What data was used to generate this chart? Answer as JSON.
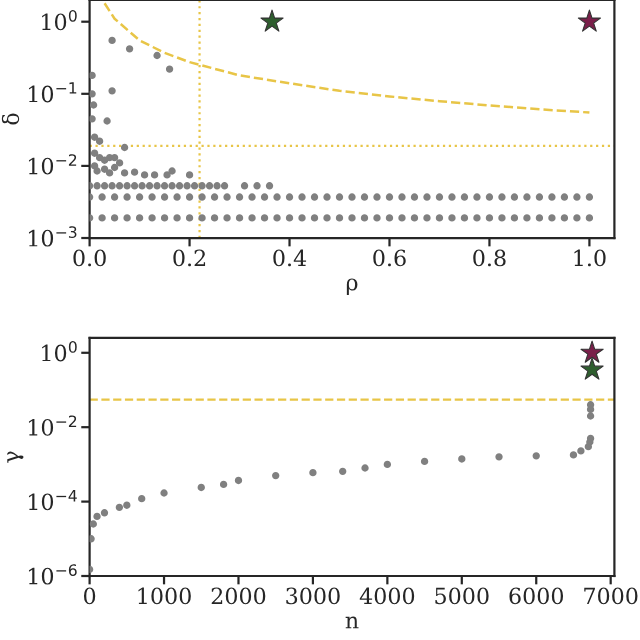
{
  "chart_data": [
    {
      "type": "scatter",
      "xlabel": "ρ",
      "ylabel": "δ",
      "log": "y",
      "xlim": [
        0,
        1.05
      ],
      "ylim": [
        0.001,
        2
      ],
      "xticks": [
        {
          "value": 0,
          "label": "0.0"
        },
        0.2,
        0.4,
        0.6,
        0.8,
        {
          "value": 1,
          "label": "1.0"
        }
      ],
      "yticks": [
        {
          "value": 0.001,
          "label": "10$^{−3}$"
        },
        {
          "value": 0.01,
          "label": "10$^{−2}$"
        },
        {
          "value": 0.1,
          "label": "10$^{−1}$"
        },
        {
          "value": 1,
          "label": "10$^{0}$"
        }
      ],
      "ref_lines": [
        {
          "axis": "x",
          "value": 0.22,
          "color": "#e8c547",
          "line_style": "dotted"
        },
        {
          "axis": "y",
          "value": 0.019,
          "color": "#e8c547",
          "line_style": "dotted"
        }
      ],
      "series": [
        {
          "marker": "circle",
          "color": "#808080",
          "x": [
            0,
            0.025,
            0.05,
            0.075,
            0.1,
            0.125,
            0.15,
            0.175,
            0.2,
            0.225,
            0.25,
            0.275,
            0.3,
            0.325,
            0.35,
            0.375,
            0.4,
            0.425,
            0.45,
            0.475,
            0.5,
            0.525,
            0.55,
            0.575,
            0.6,
            0.625,
            0.65,
            0.675,
            0.7,
            0.725,
            0.75,
            0.775,
            0.8,
            0.825,
            0.85,
            0.875,
            0.9,
            0.925,
            0.95,
            0.975,
            1.0,
            0,
            0.025,
            0.05,
            0.075,
            0.1,
            0.125,
            0.15,
            0.175,
            0.2,
            0.225,
            0.25,
            0.275,
            0.3,
            0.325,
            0.35,
            0.375,
            0.4,
            0.425,
            0.45,
            0.475,
            0.5,
            0.525,
            0.55,
            0.575,
            0.6,
            0.625,
            0.65,
            0.675,
            0.7,
            0.725,
            0.75,
            0.775,
            0.8,
            0.825,
            0.85,
            0.875,
            0.9,
            0.925,
            0.95,
            0.975,
            1.0,
            0,
            0.015,
            0.03,
            0.045,
            0.06,
            0.075,
            0.09,
            0.105,
            0.12,
            0.135,
            0.15,
            0.165,
            0.18,
            0.195,
            0.21,
            0.225,
            0.24,
            0.255,
            0.27,
            0.31,
            0.335,
            0.36,
            0.045,
            0.08,
            0.135,
            0.16,
            0.045,
            0.035,
            0.005,
            0.005,
            0.008,
            0.005,
            0.01,
            0.02,
            0.07,
            0.01,
            0.02,
            0.03,
            0.04,
            0.05,
            0.06,
            0.01,
            0.03,
            0.05,
            0.07,
            0.09,
            0.11,
            0.13,
            0.155,
            0.165,
            0.2,
            0.015,
            0.04
          ],
          "values": [
            0.0019,
            0.0019,
            0.0019,
            0.0019,
            0.0019,
            0.0019,
            0.0019,
            0.0019,
            0.0019,
            0.0019,
            0.0019,
            0.0019,
            0.0019,
            0.0019,
            0.0019,
            0.0019,
            0.0019,
            0.0019,
            0.0019,
            0.0019,
            0.0019,
            0.0019,
            0.0019,
            0.0019,
            0.0019,
            0.0019,
            0.0019,
            0.0019,
            0.0019,
            0.0019,
            0.0019,
            0.0019,
            0.0019,
            0.0019,
            0.0019,
            0.0019,
            0.0019,
            0.0019,
            0.0019,
            0.0019,
            0.0019,
            0.0037,
            0.0037,
            0.0037,
            0.0037,
            0.0037,
            0.0037,
            0.0037,
            0.0037,
            0.0037,
            0.0037,
            0.0037,
            0.0037,
            0.0037,
            0.0037,
            0.0037,
            0.0037,
            0.0037,
            0.0037,
            0.0037,
            0.0037,
            0.0037,
            0.0037,
            0.0037,
            0.0037,
            0.0037,
            0.0037,
            0.0037,
            0.0037,
            0.0037,
            0.0037,
            0.0037,
            0.0037,
            0.0037,
            0.0037,
            0.0037,
            0.0037,
            0.0037,
            0.0037,
            0.0037,
            0.0037,
            0.0037,
            0.0053,
            0.0053,
            0.0053,
            0.0053,
            0.0053,
            0.0053,
            0.0053,
            0.0053,
            0.0053,
            0.0053,
            0.0053,
            0.0053,
            0.0053,
            0.0053,
            0.0053,
            0.0053,
            0.0053,
            0.0053,
            0.0053,
            0.0053,
            0.0053,
            0.0053,
            0.55,
            0.42,
            0.34,
            0.22,
            0.11,
            0.042,
            0.18,
            0.1,
            0.07,
            0.045,
            0.025,
            0.022,
            0.018,
            0.015,
            0.013,
            0.012,
            0.013,
            0.013,
            0.011,
            0.01,
            0.009,
            0.0095,
            0.008,
            0.0082,
            0.0075,
            0.0075,
            0.0075,
            0.0085,
            0.0075,
            0.0085,
            0.008
          ]
        },
        {
          "type": "line",
          "marker": "none",
          "line_style": "dashed",
          "color": "#e8c547",
          "x": [
            0.03,
            0.05,
            0.1,
            0.15,
            0.2,
            0.3,
            0.4,
            0.5,
            0.6,
            0.7,
            0.8,
            0.9,
            1.0
          ],
          "values": [
            1.8,
            1.1,
            0.55,
            0.37,
            0.275,
            0.18,
            0.14,
            0.11,
            0.092,
            0.079,
            0.069,
            0.061,
            0.055
          ]
        },
        {
          "marker": "star",
          "color": "#2e5e2e",
          "x": [
            0.365
          ],
          "values": [
            1
          ]
        },
        {
          "marker": "star",
          "color": "#7a1f4a",
          "x": [
            1.0
          ],
          "values": [
            1
          ]
        }
      ]
    },
    {
      "type": "scatter",
      "xlabel": "n",
      "ylabel": "γ",
      "log": "y",
      "xlim": [
        0,
        7050
      ],
      "ylim": [
        1e-06,
        2.5
      ],
      "xticks": [
        0,
        1000,
        2000,
        3000,
        4000,
        5000,
        6000,
        7000
      ],
      "yticks": [
        {
          "value": 1e-06,
          "label": "10$^{−6}$"
        },
        {
          "value": 0.0001,
          "label": "10$^{−4}$"
        },
        {
          "value": 0.01,
          "label": "10$^{−2}$"
        },
        {
          "value": 1,
          "label": "10$^{0}$"
        }
      ],
      "ref_lines": [
        {
          "axis": "y",
          "value": 0.055,
          "color": "#e8c547",
          "line_style": "dashed"
        }
      ],
      "series": [
        {
          "marker": "circle",
          "color": "#808080",
          "x": [
            0,
            20,
            50,
            100,
            200,
            400,
            500,
            700,
            1000,
            1500,
            1800,
            2000,
            2500,
            3000,
            3400,
            3700,
            4000,
            4500,
            5000,
            5500,
            6000,
            6500,
            6600,
            6700,
            6720,
            6730,
            6730,
            6730,
            6730
          ],
          "values": [
            1.5e-06,
            1e-05,
            2.5e-05,
            4e-05,
            5e-05,
            7e-05,
            8e-05,
            0.00012,
            0.00017,
            0.00024,
            0.00029,
            0.00037,
            0.0005,
            0.0006,
            0.00065,
            0.0008,
            0.001,
            0.0012,
            0.0014,
            0.0016,
            0.0017,
            0.0018,
            0.0023,
            0.003,
            0.004,
            0.005,
            0.02,
            0.03,
            0.04
          ]
        },
        {
          "marker": "star",
          "color": "#7a1f4a",
          "x": [
            6750
          ],
          "values": [
            1.0
          ]
        },
        {
          "marker": "star",
          "color": "#2e5e2e",
          "x": [
            6750
          ],
          "values": [
            0.35
          ]
        }
      ]
    }
  ]
}
